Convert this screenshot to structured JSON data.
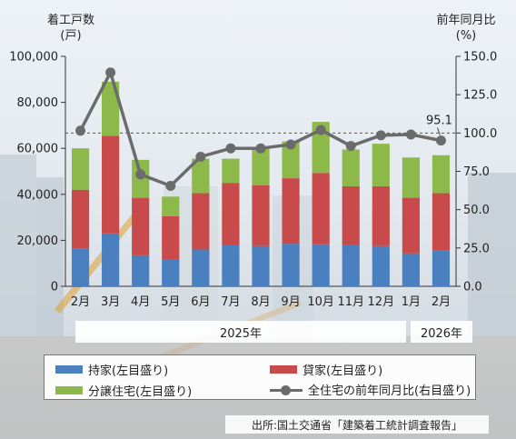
{
  "chart_data": {
    "type": "bar",
    "left_axis_title": [
      "着工戸数",
      "(戸)"
    ],
    "right_axis_title": [
      "前年同月比",
      "(%)"
    ],
    "categories": [
      "2月",
      "3月",
      "4月",
      "5月",
      "6月",
      "7月",
      "8月",
      "9月",
      "10月",
      "11月",
      "12月",
      "1月",
      "2月"
    ],
    "ylim": [
      0,
      100000
    ],
    "y_ticks": [
      0,
      20000,
      40000,
      60000,
      80000,
      100000
    ],
    "y_tick_labels": [
      "0",
      "20,000",
      "40,000",
      "60,000",
      "80,000",
      "100,000"
    ],
    "y2lim": [
      0,
      150
    ],
    "y2_ticks": [
      0,
      25,
      50,
      75,
      100,
      125,
      150
    ],
    "y2_tick_labels": [
      "0.0",
      "25.0",
      "50.0",
      "75.0",
      "100.0",
      "125.0",
      "150.0"
    ],
    "reference_y2": 100,
    "series": [
      {
        "name": "持家(左目盛り)",
        "color": "#4a7fc0",
        "values": [
          16500,
          23000,
          13500,
          11500,
          16000,
          17800,
          17500,
          18500,
          18300,
          18000,
          17500,
          14300,
          15500
        ]
      },
      {
        "name": "貸家(左目盛り)",
        "color": "#c94a4a",
        "values": [
          25500,
          42500,
          25000,
          19000,
          24500,
          27200,
          26500,
          28500,
          31000,
          25500,
          26000,
          24200,
          25000
        ]
      },
      {
        "name": "分譲住宅(左目盛り)",
        "color": "#8db84a",
        "values": [
          18000,
          23500,
          16500,
          8500,
          15000,
          10500,
          16000,
          16000,
          22200,
          16000,
          18500,
          17500,
          16500
        ]
      },
      {
        "name": "全住宅の前年同月比(右目盛り)",
        "type": "line",
        "axis": "right",
        "color": "#6b6b6b",
        "values": [
          101.5,
          139.5,
          73.0,
          65.5,
          84.5,
          90.0,
          90.0,
          92.5,
          102.0,
          91.5,
          98.5,
          99.0,
          95.1
        ]
      }
    ],
    "annotation": "95.1",
    "year_labels": [
      "2025年",
      "2026年"
    ]
  },
  "source": "出所:国土交通省「建築着工統計調査報告」"
}
